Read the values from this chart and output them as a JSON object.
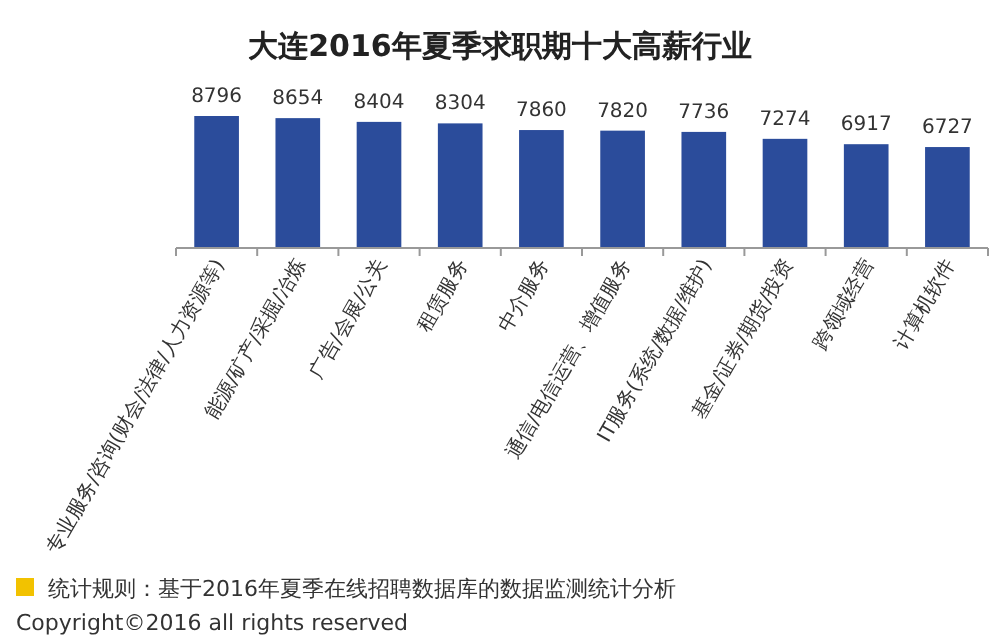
{
  "chart_data": {
    "type": "bar",
    "title": "大连2016年夏季求职期十大高薪行业",
    "categories": [
      "专业服务/咨询(财会/法律/人力资源等)",
      "能源/矿产/采掘/冶炼",
      "广告/会展/公关",
      "租赁服务",
      "中介服务",
      "通信/电信运营、增值服务",
      "IT服务(系统/数据/维护)",
      "基金/证券/期货/投资",
      "跨领域经营",
      "计算机软件"
    ],
    "values": [
      8796,
      8654,
      8404,
      8304,
      7860,
      7820,
      7736,
      7274,
      6917,
      6727
    ],
    "color": "#2b4c9b",
    "data_labels": true,
    "tick_labels": "x",
    "annotations": [
      "统计规则：基于2016年夏季在线招聘数据库的数据监测统计分析",
      "Copyright©2016 all rights reserved"
    ]
  }
}
